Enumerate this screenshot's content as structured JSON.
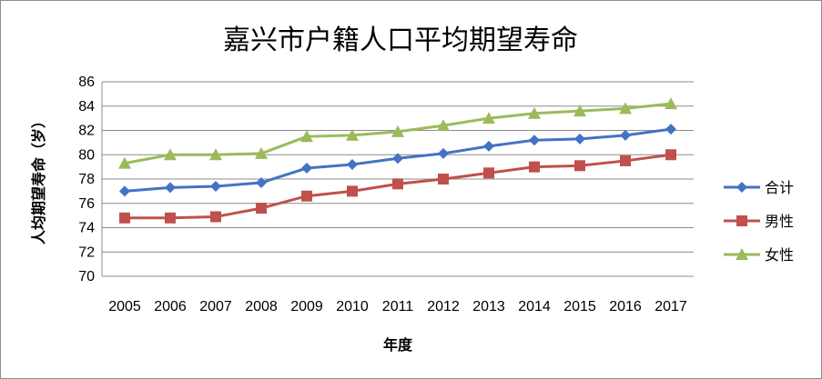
{
  "chart_data": {
    "type": "line",
    "title": "嘉兴市户籍人口平均期望寿命",
    "xlabel": "年度",
    "ylabel": "人均期望寿命（岁）",
    "ylim": [
      70,
      86
    ],
    "yticks": [
      "70",
      "72",
      "74",
      "76",
      "78",
      "80",
      "82",
      "84",
      "86"
    ],
    "categories": [
      "2005",
      "2006",
      "2007",
      "2008",
      "2009",
      "2010",
      "2011",
      "2012",
      "2013",
      "2014",
      "2015",
      "2016",
      "2017"
    ],
    "grid": true,
    "legend_position": "right",
    "series": [
      {
        "name": "合计",
        "color": "#4472C4",
        "marker": "diamond",
        "values": [
          77.0,
          77.3,
          77.4,
          77.7,
          78.9,
          79.2,
          79.7,
          80.1,
          80.7,
          81.2,
          81.3,
          81.6,
          82.1
        ]
      },
      {
        "name": "男性",
        "color": "#C0504D",
        "marker": "square",
        "values": [
          74.8,
          74.8,
          74.9,
          75.6,
          76.6,
          77.0,
          77.6,
          78.0,
          78.5,
          79.0,
          79.1,
          79.5,
          80.0
        ]
      },
      {
        "name": "女性",
        "color": "#9BBB59",
        "marker": "triangle",
        "values": [
          79.3,
          80.0,
          80.0,
          80.1,
          81.5,
          81.6,
          81.9,
          82.4,
          83.0,
          83.4,
          83.6,
          83.8,
          84.2
        ]
      }
    ]
  }
}
